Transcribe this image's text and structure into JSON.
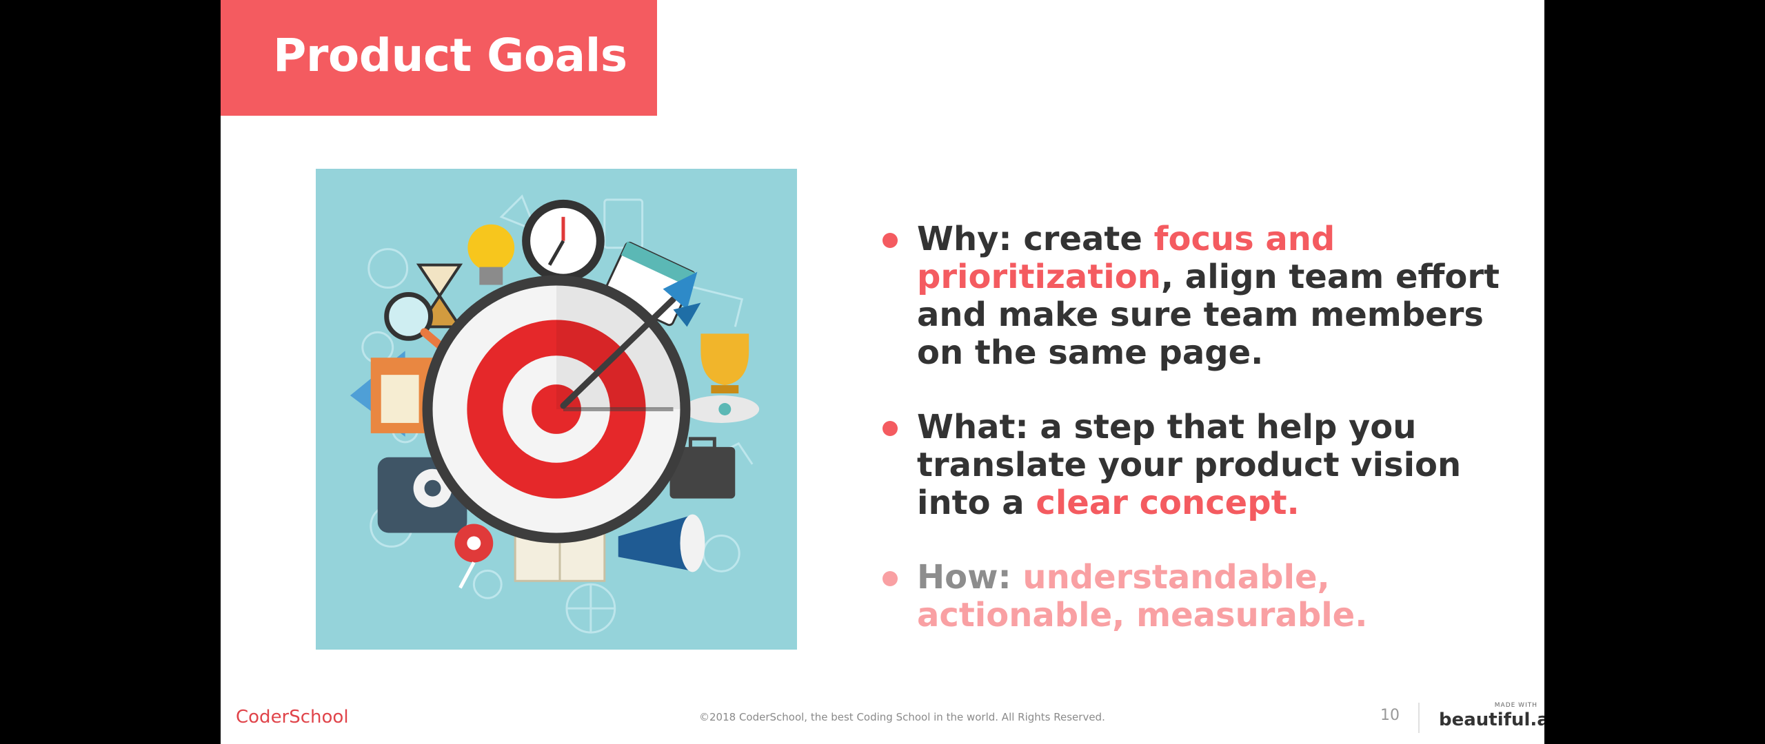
{
  "slide": {
    "title": "Product Goals",
    "bullets": [
      {
        "prefix": "Why: create ",
        "highlight": "focus and prioritization",
        "suffix": ", align team effort and make sure team members on the same page."
      },
      {
        "prefix": "What: a step that help you translate your product vision into a ",
        "highlight": "clear concept.",
        "suffix": ""
      },
      {
        "prefix": "How: ",
        "highlight": "understandable, actionable, measurable.",
        "suffix": ""
      }
    ],
    "footer": {
      "logo": "CoderSchool",
      "copyright": "©2018 CoderSchool, the best Coding School in the world. All Rights Reserved.",
      "page_number": "10",
      "made_with": "MADE WITH",
      "brand": "beautiful.ai"
    }
  },
  "colors": {
    "accent": "#f45b60",
    "illustration_bg": "#95d3da",
    "text": "#333333"
  }
}
